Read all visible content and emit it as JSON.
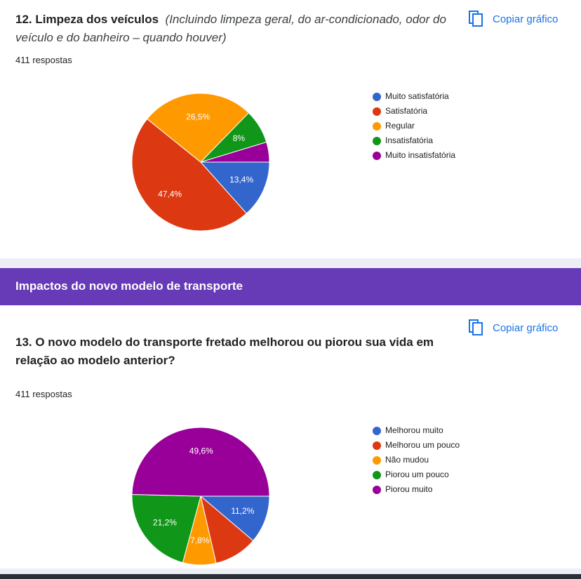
{
  "chart_data": [
    {
      "type": "pie",
      "title": "12. Limpeza dos veículos",
      "description": "(Incluindo limpeza geral, do ar-condicionado, odor do veículo e do banheiro – quando houver)",
      "subtitle": "411 respostas",
      "button": "Copiar gráfico",
      "categories": [
        "Muito satisfatória",
        "Satisfatória",
        "Regular",
        "Insatisfatória",
        "Muito insatisfatória"
      ],
      "values": [
        13.4,
        47.4,
        26.5,
        8,
        4.7
      ],
      "value_labels": [
        "13,4%",
        "47,4%",
        "26,5%",
        "8%",
        null
      ],
      "colors": [
        "#3366cc",
        "#dc3912",
        "#ff9900",
        "#109618",
        "#990099"
      ]
    },
    {
      "type": "pie",
      "section": "Impactos do novo modelo de transporte",
      "title": "13. O novo modelo do transporte fretado melhorou ou piorou sua vida em relação ao modelo anterior?",
      "subtitle": "411 respostas",
      "button": "Copiar gráfico",
      "categories": [
        "Melhorou muito",
        "Melhorou um pouco",
        "Não mudou",
        "Piorou um pouco",
        "Piorou muito"
      ],
      "values": [
        11.2,
        10.2,
        7.8,
        21.2,
        49.6
      ],
      "value_labels": [
        "11,2%",
        null,
        "7,8%",
        "21,2%",
        "49,6%"
      ],
      "colors": [
        "#3366cc",
        "#dc3912",
        "#ff9900",
        "#109618",
        "#990099"
      ]
    }
  ]
}
